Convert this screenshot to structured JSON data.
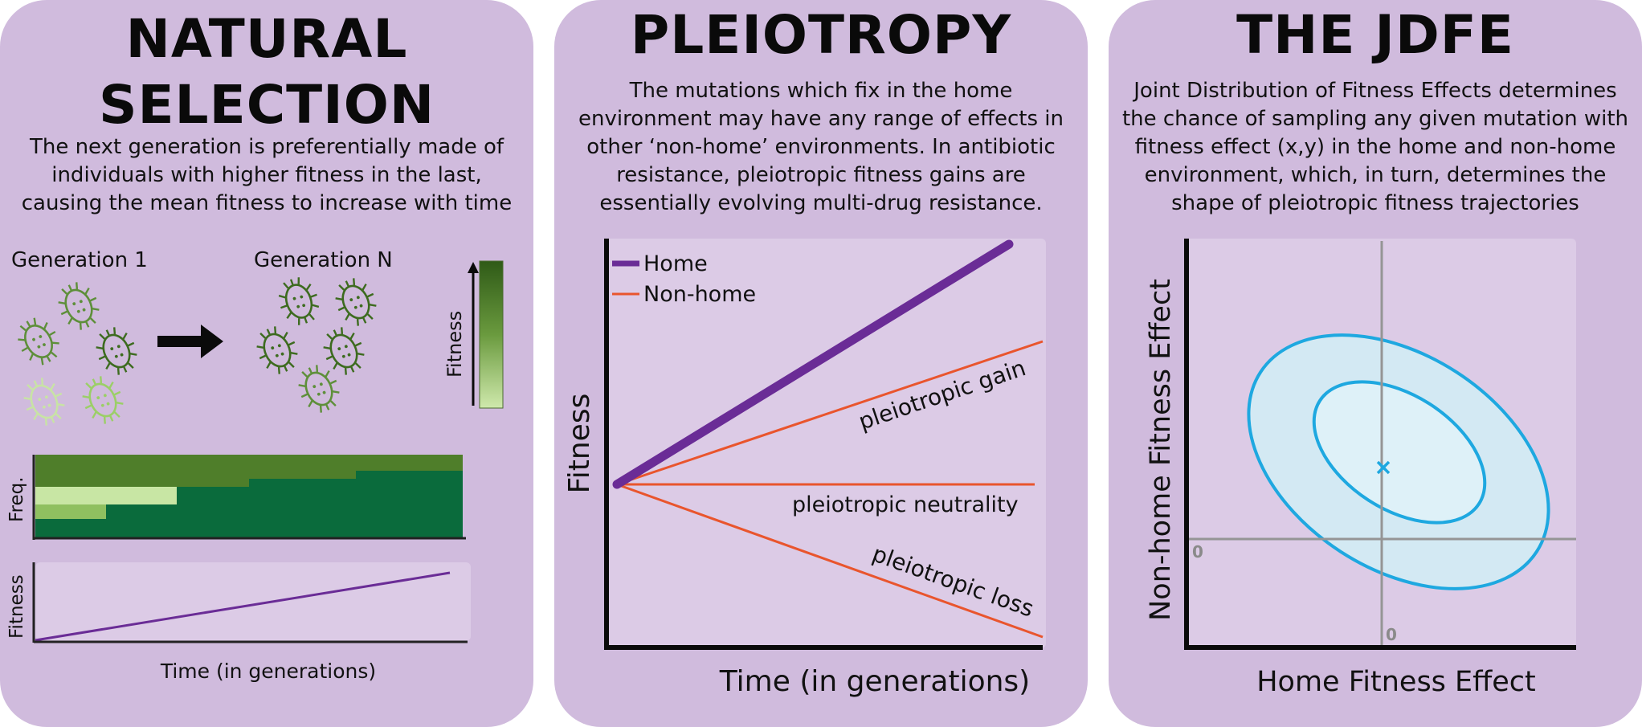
{
  "panels": {
    "natural_selection": {
      "title": "NATURAL SELECTION",
      "description": "The next generation is preferentially made of individuals with higher fitness in the last, causing the mean fitness to increase with time",
      "generation_1_label": "Generation 1",
      "generation_n_label": "Generation N",
      "colorbar_label": "Fitness",
      "freq_axis_label": "Freq.",
      "fitness_axis_label": "Fitness",
      "time_axis_label": "Time (in generations)",
      "colors": {
        "light": "#c8e6a4",
        "mid_light": "#8fc060",
        "mid": "#4f7e2a",
        "dark": "#0a6b3c",
        "line": "#6a2c96"
      }
    },
    "pleiotropy": {
      "title": "PLEIOTROPY",
      "description": "The mutations which fix in the home environment may have any range of effects in other ‘non-home’ environments. In antibiotic resistance, pleiotropic fitness gains are essentially evolving multi-drug resistance.",
      "legend_home": "Home",
      "legend_nonhome": "Non-home",
      "y_axis_label": "Fitness",
      "x_axis_label": "Time (in generations)",
      "label_gain": "pleiotropic gain",
      "label_neutral": "pleiotropic neutrality",
      "label_loss": "pleiotropic loss",
      "colors": {
        "home": "#6a2c96",
        "nonhome": "#e9552d",
        "plot_bg": "#dccbe6"
      }
    },
    "jdfe": {
      "title": "THE JDFE",
      "description": "Joint Distribution of Fitness Effects determines the chance of sampling any given mutation with fitness effect (x,y) in the home and non-home environment, which, in turn, determines the shape of pleiotropic fitness trajectories",
      "x_axis_label": "Home Fitness Effect",
      "y_axis_label": "Non-home Fitness Effect",
      "x_origin_label": "0",
      "y_origin_label": "0",
      "colors": {
        "contour": "#1ea8e0",
        "fill_outer": "#d3e9f3",
        "fill_inner": "#def1f8"
      }
    }
  }
}
